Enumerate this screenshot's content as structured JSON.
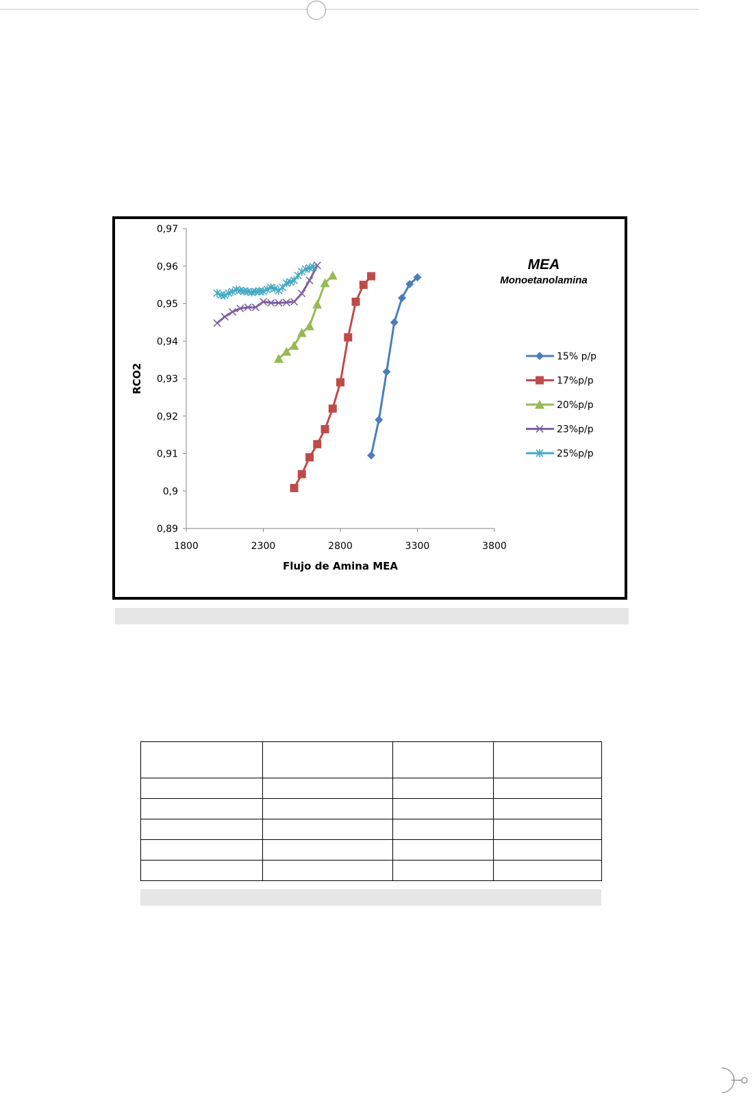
{
  "chart_data": {
    "type": "line",
    "title": "MEA",
    "subtitle": "Monoetanolamina",
    "xlabel": "Flujo de Amina MEA",
    "ylabel": "RCO2",
    "xlim": [
      1800,
      3800
    ],
    "ylim": [
      0.89,
      0.97
    ],
    "xticks": [
      1800,
      2300,
      2800,
      3300,
      3800
    ],
    "xtick_labels": [
      "1800",
      "2300",
      "2800",
      "3300",
      "3800"
    ],
    "yticks": [
      0.89,
      0.9,
      0.91,
      0.92,
      0.93,
      0.94,
      0.95,
      0.96,
      0.97
    ],
    "ytick_labels": [
      "0,89",
      "0,9",
      "0,91",
      "0,92",
      "0,93",
      "0,94",
      "0,95",
      "0,96",
      "0,97"
    ],
    "grid": false,
    "legend_position": "right",
    "series": [
      {
        "name": "15% p/p",
        "color": "#4a7ebb",
        "marker": "diamond",
        "x": [
          3000,
          3050,
          3100,
          3150,
          3200,
          3250,
          3300
        ],
        "y": [
          0.9095,
          0.919,
          0.9318,
          0.945,
          0.9515,
          0.9552,
          0.957
        ]
      },
      {
        "name": "17%p/p",
        "color": "#be4b48",
        "marker": "square",
        "x": [
          2500,
          2550,
          2600,
          2650,
          2700,
          2750,
          2800,
          2850,
          2900,
          2950,
          3000
        ],
        "y": [
          0.9008,
          0.9045,
          0.909,
          0.9125,
          0.9165,
          0.922,
          0.929,
          0.941,
          0.9505,
          0.955,
          0.9573
        ]
      },
      {
        "name": "20%p/p",
        "color": "#98b954",
        "marker": "triangle",
        "x": [
          2400,
          2450,
          2500,
          2550,
          2600,
          2650,
          2700,
          2750
        ],
        "y": [
          0.9353,
          0.9372,
          0.9388,
          0.9422,
          0.944,
          0.9498,
          0.9555,
          0.9575
        ]
      },
      {
        "name": "23%p/p",
        "color": "#7d60a0",
        "marker": "x",
        "x": [
          2000,
          2050,
          2100,
          2150,
          2200,
          2250,
          2300,
          2350,
          2400,
          2450,
          2500,
          2550,
          2600,
          2650
        ],
        "y": [
          0.9448,
          0.9465,
          0.9478,
          0.9487,
          0.949,
          0.949,
          0.9505,
          0.9502,
          0.9502,
          0.9503,
          0.9505,
          0.9527,
          0.9562,
          0.9602
        ]
      },
      {
        "name": "25%p/p",
        "color": "#46aac5",
        "marker": "star",
        "x": [
          2000,
          2025,
          2050,
          2075,
          2100,
          2125,
          2150,
          2175,
          2200,
          2225,
          2250,
          2275,
          2300,
          2325,
          2350,
          2375,
          2400,
          2425,
          2450,
          2475,
          2500,
          2525,
          2550,
          2575,
          2600,
          2625
        ],
        "y": [
          0.9528,
          0.9523,
          0.9522,
          0.9528,
          0.9532,
          0.9537,
          0.9535,
          0.9533,
          0.9532,
          0.953,
          0.9532,
          0.9533,
          0.9533,
          0.9538,
          0.9543,
          0.954,
          0.9535,
          0.9543,
          0.9555,
          0.9558,
          0.9562,
          0.9575,
          0.9585,
          0.9592,
          0.9595,
          0.9598
        ]
      }
    ]
  }
}
